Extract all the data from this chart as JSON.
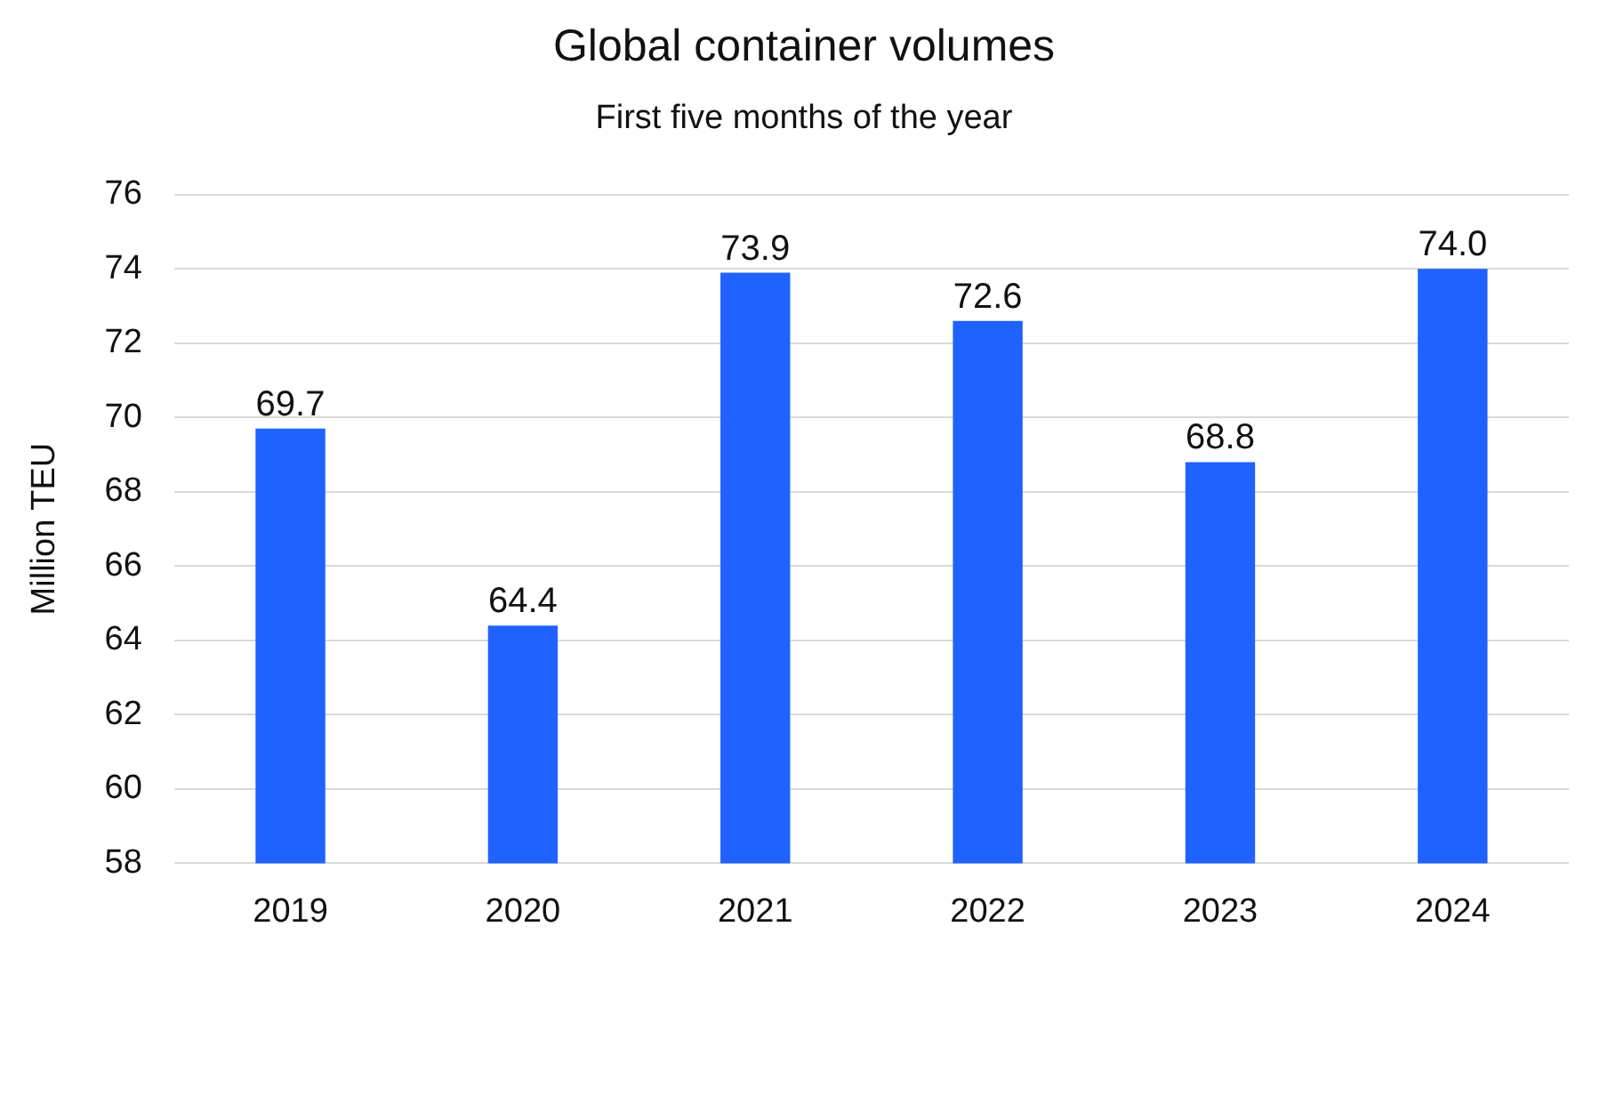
{
  "chart_data": {
    "type": "bar",
    "title": "Global container volumes",
    "subtitle": "First five months of the year",
    "ylabel": "Million TEU",
    "categories": [
      "2019",
      "2020",
      "2021",
      "2022",
      "2023",
      "2024"
    ],
    "values": [
      69.7,
      64.4,
      73.9,
      72.6,
      68.8,
      74.0
    ],
    "value_labels": [
      "69.7",
      "64.4",
      "73.9",
      "72.6",
      "68.8",
      "74.0"
    ],
    "color": "#1f62ff",
    "ylim": [
      58,
      76
    ],
    "yticks": [
      58,
      60,
      62,
      64,
      66,
      68,
      70,
      72,
      74,
      76
    ],
    "grid": "y",
    "legend": false
  }
}
